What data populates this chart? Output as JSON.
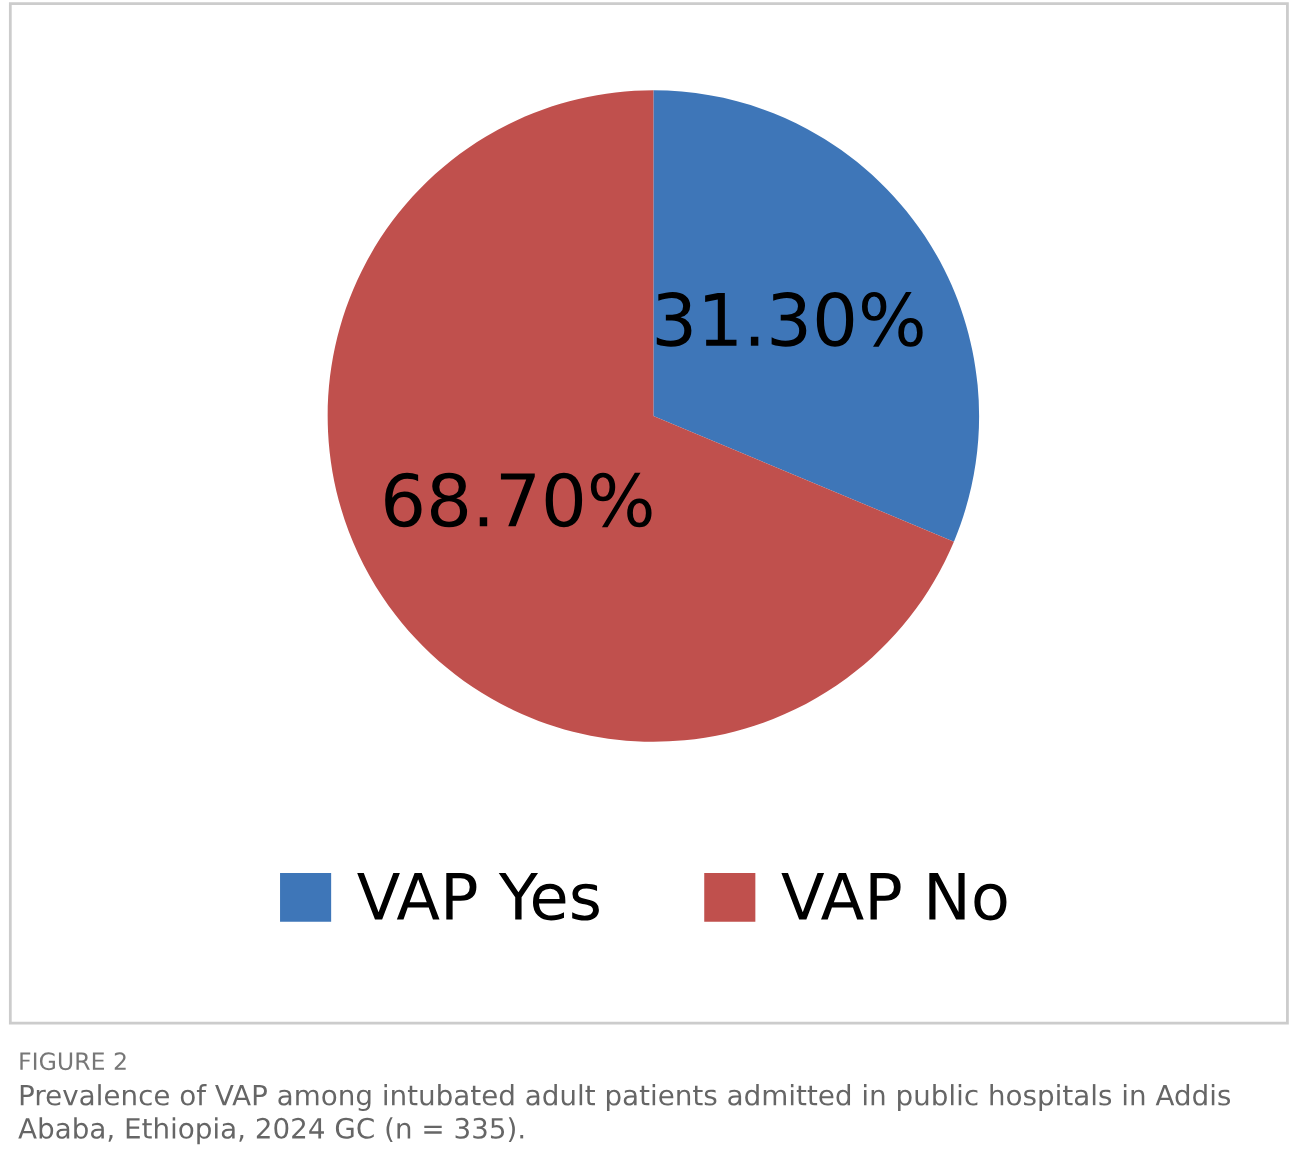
{
  "chart_data": {
    "type": "pie",
    "categories": [
      "VAP Yes",
      "VAP No"
    ],
    "values": [
      31.3,
      68.7
    ],
    "colors": [
      "#3e76b8",
      "#c0504d"
    ],
    "value_labels": [
      "31.30%",
      "68.70%"
    ],
    "legend": "bottom",
    "annotations": [
      "FIGURE 2",
      "Prevalence of VAP among intubated adult patients admitted in public hospitals in Addis Ababa, Ethiopia, 2024 GC (n = 335)."
    ]
  }
}
